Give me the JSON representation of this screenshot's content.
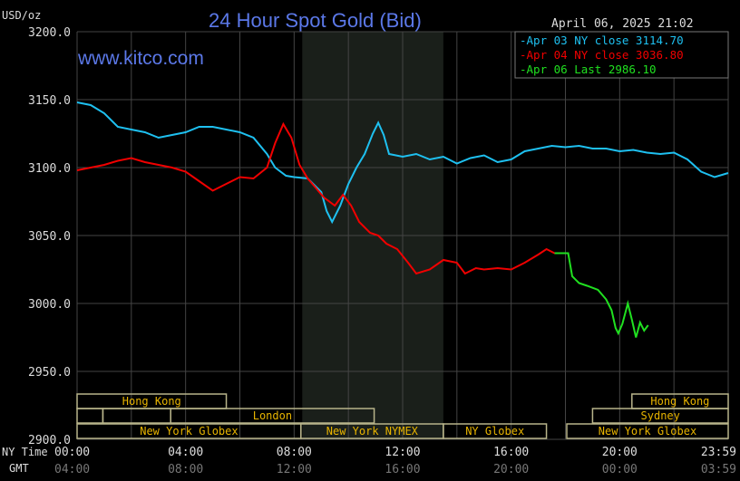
{
  "chart_data": {
    "type": "line",
    "title": "24 Hour Spot Gold (Bid)",
    "ylabel": "USD/oz",
    "watermark": "www.kitco.com",
    "timestamp": "April 06, 2025 21:02",
    "ylim": [
      2900,
      3200
    ],
    "xlim": [
      0,
      24
    ],
    "yticks": [
      "3200.0",
      "3150.0",
      "3100.0",
      "3050.0",
      "3000.0",
      "2950.0",
      "2900.0"
    ],
    "ytick_values": [
      3200,
      3150,
      3100,
      3050,
      3000,
      2950,
      2900
    ],
    "x_row_labels": {
      "ny": "NY Time",
      "gmt": "GMT"
    },
    "xticks_ny": [
      "00:00",
      "04:00",
      "08:00",
      "12:00",
      "16:00",
      "20:00",
      "23:59"
    ],
    "xticks_gmt": [
      "04:00",
      "08:00",
      "12:00",
      "16:00",
      "20:00",
      "00:00",
      "03:59"
    ],
    "xtick_hours": [
      0,
      4,
      8,
      12,
      16,
      20,
      24
    ],
    "shaded_hours": [
      8.3,
      13.5
    ],
    "series": [
      {
        "name": "Apr 03 NY close 3114.70",
        "color": "#1ec0f0",
        "x": [
          0,
          0.5,
          1,
          1.5,
          2,
          2.5,
          3,
          3.5,
          4,
          4.5,
          5,
          5.5,
          6,
          6.5,
          7,
          7.3,
          7.7,
          8,
          8.5,
          9,
          9.2,
          9.4,
          9.7,
          10,
          10.3,
          10.6,
          10.9,
          11.1,
          11.3,
          11.5,
          12,
          12.5,
          13,
          13.5,
          14,
          14.5,
          15,
          15.5,
          16,
          16.5,
          17,
          17.5,
          18,
          18.5,
          19,
          19.5,
          20,
          20.5,
          21,
          21.5,
          22,
          22.5,
          23,
          23.5,
          24
        ],
        "y": [
          3148,
          3146,
          3140,
          3130,
          3128,
          3126,
          3122,
          3124,
          3126,
          3130,
          3130,
          3128,
          3126,
          3122,
          3110,
          3100,
          3094,
          3093,
          3092,
          3082,
          3068,
          3060,
          3072,
          3088,
          3100,
          3110,
          3125,
          3133,
          3124,
          3110,
          3108,
          3110,
          3106,
          3108,
          3103,
          3107,
          3109,
          3104,
          3106,
          3112,
          3114,
          3116,
          3115,
          3116,
          3114,
          3114,
          3112,
          3113,
          3111,
          3110,
          3111,
          3106,
          3097,
          3093,
          3096
        ]
      },
      {
        "name": "Apr 04 NY close 3036.80",
        "color": "#f00000",
        "x": [
          0,
          0.5,
          1,
          1.5,
          2,
          2.5,
          3,
          3.5,
          4,
          4.5,
          5,
          5.5,
          6,
          6.5,
          7,
          7.3,
          7.6,
          7.9,
          8.2,
          8.5,
          8.8,
          9.1,
          9.5,
          9.8,
          10.1,
          10.4,
          10.8,
          11.1,
          11.4,
          11.8,
          12.2,
          12.5,
          13,
          13.5,
          14,
          14.3,
          14.7,
          15,
          15.5,
          16,
          16.5,
          17,
          17.3,
          17.6,
          18
        ],
        "y": [
          3098,
          3100,
          3102,
          3105,
          3107,
          3104,
          3102,
          3100,
          3097,
          3090,
          3083,
          3088,
          3093,
          3092,
          3100,
          3118,
          3132,
          3122,
          3102,
          3092,
          3085,
          3078,
          3072,
          3080,
          3072,
          3060,
          3052,
          3050,
          3044,
          3040,
          3030,
          3022,
          3025,
          3032,
          3030,
          3022,
          3026,
          3025,
          3026,
          3025,
          3030,
          3036,
          3040,
          3037,
          3037
        ]
      },
      {
        "name": "Apr 06 Last 2986.10",
        "color": "#20e020",
        "x": [
          17.6,
          18.1,
          18.25,
          18.5,
          18.8,
          19.2,
          19.5,
          19.7,
          19.85,
          19.95,
          20.1,
          20.3,
          20.45,
          20.6,
          20.75,
          20.9,
          21.05
        ],
        "y": [
          3037,
          3037,
          3020,
          3015,
          3013,
          3010,
          3003,
          2995,
          2982,
          2978,
          2985,
          3000,
          2988,
          2975,
          2986,
          2980,
          2984
        ]
      }
    ],
    "sessions": [
      {
        "label": "Hong Kong",
        "row": 0,
        "start": 0,
        "end": 5.5
      },
      {
        "label": "",
        "row": 1,
        "start": 0,
        "end": 0.95
      },
      {
        "label": "",
        "row": 1,
        "start": 0.95,
        "end": 3.45
      },
      {
        "label": "London",
        "row": 1,
        "start": 3.45,
        "end": 10.95
      },
      {
        "label": "New York Globex",
        "row": 2,
        "start": 0,
        "end": 8.25
      },
      {
        "label": "New York NYMEX",
        "row": 2,
        "start": 8.25,
        "end": 13.5
      },
      {
        "label": "NY Globex",
        "row": 2,
        "start": 13.5,
        "end": 17.3
      },
      {
        "label": "Sydney",
        "row": 1,
        "start": 19.0,
        "end": 24
      },
      {
        "label": "Hong Kong",
        "row": 0,
        "start": 20.45,
        "end": 24
      },
      {
        "label": "New York Globex",
        "row": 2,
        "start": 18.05,
        "end": 24
      }
    ]
  }
}
